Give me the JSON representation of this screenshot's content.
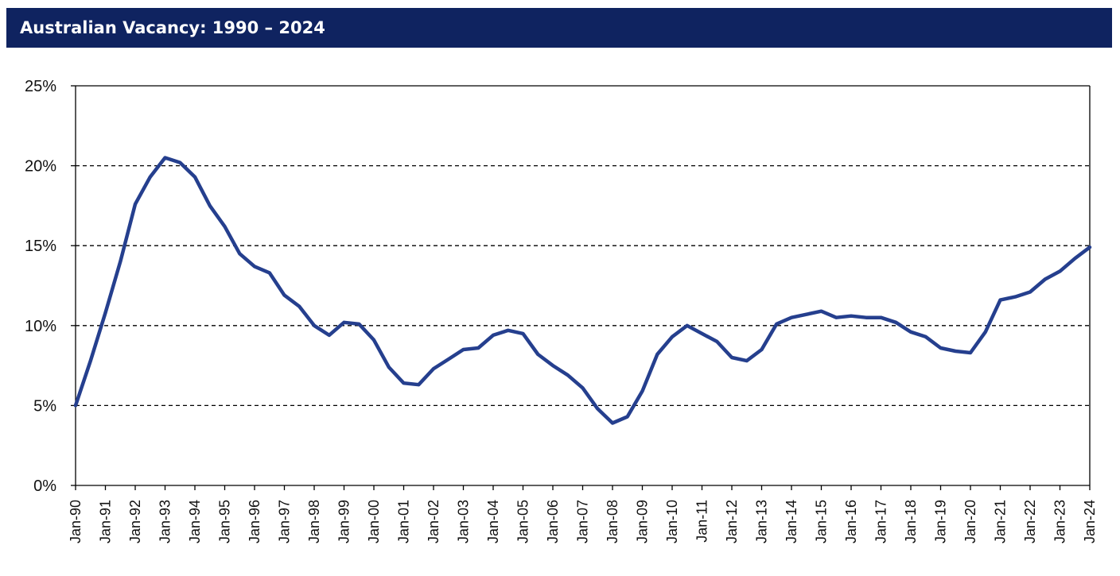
{
  "header": {
    "title": "Australian Vacancy: 1990 – 2024"
  },
  "chart_data": {
    "type": "line",
    "title": "Australian Vacancy: 1990 – 2024",
    "xlabel": "",
    "ylabel": "",
    "ylim": [
      0,
      25
    ],
    "y_ticks": [
      "0%",
      "5%",
      "10%",
      "15%",
      "20%",
      "25%"
    ],
    "y_tick_values": [
      0,
      5,
      10,
      15,
      20,
      25
    ],
    "grid": "horizontal dashed",
    "line_color": "#253f8e",
    "categories": [
      "Jan-90",
      "Jan-91",
      "Jan-92",
      "Jan-93",
      "Jan-94",
      "Jan-95",
      "Jan-96",
      "Jan-97",
      "Jan-98",
      "Jan-99",
      "Jan-00",
      "Jan-01",
      "Jan-02",
      "Jan-03",
      "Jan-04",
      "Jan-05",
      "Jan-06",
      "Jan-07",
      "Jan-08",
      "Jan-09",
      "Jan-10",
      "Jan-11",
      "Jan-12",
      "Jan-13",
      "Jan-14",
      "Jan-15",
      "Jan-16",
      "Jan-17",
      "Jan-18",
      "Jan-19",
      "Jan-20",
      "Jan-21",
      "Jan-22",
      "Jan-23",
      "Jan-24"
    ],
    "series": [
      {
        "x": [
          0,
          0.5,
          1,
          1.5,
          2,
          2.5,
          3,
          3.5,
          4,
          4.5,
          5,
          5.5,
          6,
          6.5,
          7,
          7.5,
          8,
          8.5,
          9,
          9.5,
          10,
          10.5,
          11,
          11.5,
          12,
          12.5,
          13,
          13.5,
          14,
          14.5,
          15,
          15.5,
          16,
          16.5,
          17,
          17.5,
          18,
          18.5,
          19,
          19.5,
          20,
          20.5,
          21,
          21.5,
          22,
          22.5,
          23,
          23.5,
          24,
          24.5,
          25,
          25.5,
          26,
          26.5,
          27,
          27.5,
          28,
          28.5,
          29,
          29.5,
          30,
          30.5,
          31,
          31.5,
          32,
          32.5,
          33,
          33.5,
          34
        ],
        "values": [
          5.0,
          7.8,
          10.8,
          14.0,
          17.6,
          19.3,
          20.5,
          20.2,
          19.3,
          17.5,
          16.2,
          14.5,
          13.7,
          13.3,
          11.9,
          11.2,
          10.0,
          9.4,
          10.2,
          10.1,
          9.1,
          7.4,
          6.4,
          6.3,
          7.3,
          7.9,
          8.5,
          8.6,
          9.4,
          9.7,
          9.5,
          8.2,
          7.5,
          6.9,
          6.1,
          4.8,
          3.9,
          4.3,
          5.9,
          8.2,
          9.3,
          10.0,
          9.5,
          9.0,
          8.0,
          7.8,
          8.5,
          10.1,
          10.5,
          10.7,
          10.9,
          10.5,
          10.6,
          10.5,
          10.5,
          10.2,
          9.6,
          9.3,
          8.6,
          8.4,
          8.3,
          9.6,
          11.6,
          11.8,
          12.1,
          12.9,
          13.4,
          14.2,
          14.9
        ]
      }
    ]
  }
}
